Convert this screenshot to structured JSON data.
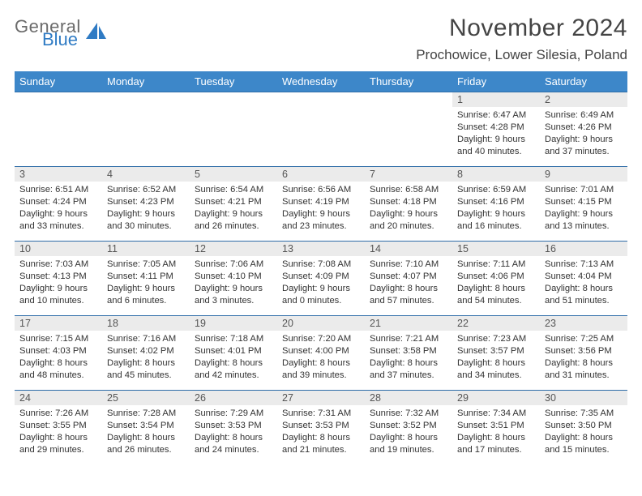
{
  "brand": {
    "top": "General",
    "bottom": "Blue",
    "logo_color": "#2f7bc4",
    "text_gray": "#6b6b6b"
  },
  "title": "November 2024",
  "location": "Prochowice, Lower Silesia, Poland",
  "colors": {
    "header_bg": "#3d87c9",
    "header_fg": "#ffffff",
    "row_divider": "#2f6da8",
    "daynum_bg": "#ebebeb",
    "text": "#333333",
    "background": "#ffffff"
  },
  "weekdays": [
    "Sunday",
    "Monday",
    "Tuesday",
    "Wednesday",
    "Thursday",
    "Friday",
    "Saturday"
  ],
  "weeks": [
    [
      {
        "empty": true
      },
      {
        "empty": true
      },
      {
        "empty": true
      },
      {
        "empty": true
      },
      {
        "empty": true
      },
      {
        "day": "1",
        "sunrise": "Sunrise: 6:47 AM",
        "sunset": "Sunset: 4:28 PM",
        "daylight": "Daylight: 9 hours and 40 minutes."
      },
      {
        "day": "2",
        "sunrise": "Sunrise: 6:49 AM",
        "sunset": "Sunset: 4:26 PM",
        "daylight": "Daylight: 9 hours and 37 minutes."
      }
    ],
    [
      {
        "day": "3",
        "sunrise": "Sunrise: 6:51 AM",
        "sunset": "Sunset: 4:24 PM",
        "daylight": "Daylight: 9 hours and 33 minutes."
      },
      {
        "day": "4",
        "sunrise": "Sunrise: 6:52 AM",
        "sunset": "Sunset: 4:23 PM",
        "daylight": "Daylight: 9 hours and 30 minutes."
      },
      {
        "day": "5",
        "sunrise": "Sunrise: 6:54 AM",
        "sunset": "Sunset: 4:21 PM",
        "daylight": "Daylight: 9 hours and 26 minutes."
      },
      {
        "day": "6",
        "sunrise": "Sunrise: 6:56 AM",
        "sunset": "Sunset: 4:19 PM",
        "daylight": "Daylight: 9 hours and 23 minutes."
      },
      {
        "day": "7",
        "sunrise": "Sunrise: 6:58 AM",
        "sunset": "Sunset: 4:18 PM",
        "daylight": "Daylight: 9 hours and 20 minutes."
      },
      {
        "day": "8",
        "sunrise": "Sunrise: 6:59 AM",
        "sunset": "Sunset: 4:16 PM",
        "daylight": "Daylight: 9 hours and 16 minutes."
      },
      {
        "day": "9",
        "sunrise": "Sunrise: 7:01 AM",
        "sunset": "Sunset: 4:15 PM",
        "daylight": "Daylight: 9 hours and 13 minutes."
      }
    ],
    [
      {
        "day": "10",
        "sunrise": "Sunrise: 7:03 AM",
        "sunset": "Sunset: 4:13 PM",
        "daylight": "Daylight: 9 hours and 10 minutes."
      },
      {
        "day": "11",
        "sunrise": "Sunrise: 7:05 AM",
        "sunset": "Sunset: 4:11 PM",
        "daylight": "Daylight: 9 hours and 6 minutes."
      },
      {
        "day": "12",
        "sunrise": "Sunrise: 7:06 AM",
        "sunset": "Sunset: 4:10 PM",
        "daylight": "Daylight: 9 hours and 3 minutes."
      },
      {
        "day": "13",
        "sunrise": "Sunrise: 7:08 AM",
        "sunset": "Sunset: 4:09 PM",
        "daylight": "Daylight: 9 hours and 0 minutes."
      },
      {
        "day": "14",
        "sunrise": "Sunrise: 7:10 AM",
        "sunset": "Sunset: 4:07 PM",
        "daylight": "Daylight: 8 hours and 57 minutes."
      },
      {
        "day": "15",
        "sunrise": "Sunrise: 7:11 AM",
        "sunset": "Sunset: 4:06 PM",
        "daylight": "Daylight: 8 hours and 54 minutes."
      },
      {
        "day": "16",
        "sunrise": "Sunrise: 7:13 AM",
        "sunset": "Sunset: 4:04 PM",
        "daylight": "Daylight: 8 hours and 51 minutes."
      }
    ],
    [
      {
        "day": "17",
        "sunrise": "Sunrise: 7:15 AM",
        "sunset": "Sunset: 4:03 PM",
        "daylight": "Daylight: 8 hours and 48 minutes."
      },
      {
        "day": "18",
        "sunrise": "Sunrise: 7:16 AM",
        "sunset": "Sunset: 4:02 PM",
        "daylight": "Daylight: 8 hours and 45 minutes."
      },
      {
        "day": "19",
        "sunrise": "Sunrise: 7:18 AM",
        "sunset": "Sunset: 4:01 PM",
        "daylight": "Daylight: 8 hours and 42 minutes."
      },
      {
        "day": "20",
        "sunrise": "Sunrise: 7:20 AM",
        "sunset": "Sunset: 4:00 PM",
        "daylight": "Daylight: 8 hours and 39 minutes."
      },
      {
        "day": "21",
        "sunrise": "Sunrise: 7:21 AM",
        "sunset": "Sunset: 3:58 PM",
        "daylight": "Daylight: 8 hours and 37 minutes."
      },
      {
        "day": "22",
        "sunrise": "Sunrise: 7:23 AM",
        "sunset": "Sunset: 3:57 PM",
        "daylight": "Daylight: 8 hours and 34 minutes."
      },
      {
        "day": "23",
        "sunrise": "Sunrise: 7:25 AM",
        "sunset": "Sunset: 3:56 PM",
        "daylight": "Daylight: 8 hours and 31 minutes."
      }
    ],
    [
      {
        "day": "24",
        "sunrise": "Sunrise: 7:26 AM",
        "sunset": "Sunset: 3:55 PM",
        "daylight": "Daylight: 8 hours and 29 minutes."
      },
      {
        "day": "25",
        "sunrise": "Sunrise: 7:28 AM",
        "sunset": "Sunset: 3:54 PM",
        "daylight": "Daylight: 8 hours and 26 minutes."
      },
      {
        "day": "26",
        "sunrise": "Sunrise: 7:29 AM",
        "sunset": "Sunset: 3:53 PM",
        "daylight": "Daylight: 8 hours and 24 minutes."
      },
      {
        "day": "27",
        "sunrise": "Sunrise: 7:31 AM",
        "sunset": "Sunset: 3:53 PM",
        "daylight": "Daylight: 8 hours and 21 minutes."
      },
      {
        "day": "28",
        "sunrise": "Sunrise: 7:32 AM",
        "sunset": "Sunset: 3:52 PM",
        "daylight": "Daylight: 8 hours and 19 minutes."
      },
      {
        "day": "29",
        "sunrise": "Sunrise: 7:34 AM",
        "sunset": "Sunset: 3:51 PM",
        "daylight": "Daylight: 8 hours and 17 minutes."
      },
      {
        "day": "30",
        "sunrise": "Sunrise: 7:35 AM",
        "sunset": "Sunset: 3:50 PM",
        "daylight": "Daylight: 8 hours and 15 minutes."
      }
    ]
  ]
}
